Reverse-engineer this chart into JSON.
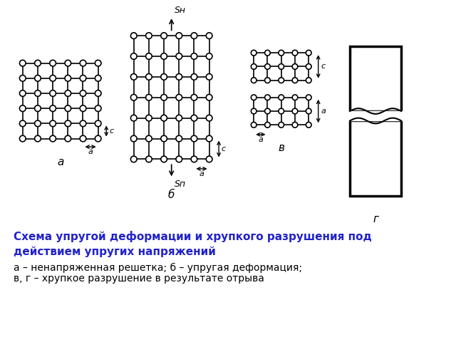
{
  "title_bold": "Схема упругой деформации и хрупкого разрушения под\nдействием упругих напряжений",
  "title_color": "#2222cc",
  "title_fontsize": 11,
  "caption_line1": "а – ненапряженная решетка; б – упругая деформация;",
  "caption_line2": "в, г – хрупкое разрушение в результате отрыва",
  "caption_color": "#000000",
  "caption_fontsize": 10,
  "bg_color": "#ffffff",
  "diagram_color": "#000000",
  "label_a": "а",
  "label_b": "б",
  "label_v": "в",
  "label_g": "г",
  "dim_a": "а",
  "dim_c": "с",
  "sn_label": "Sн",
  "sp_label": "Sп"
}
